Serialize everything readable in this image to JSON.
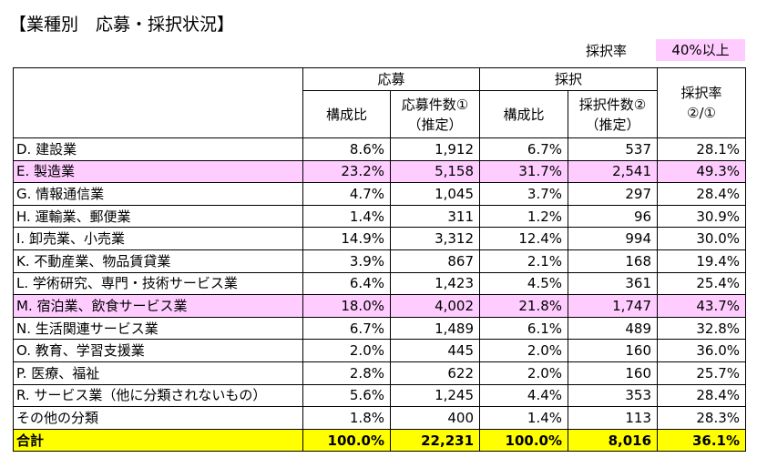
{
  "title": "【業種別　応募・採択状況】",
  "legend": {
    "label": "採択率",
    "value": "40%以上",
    "color": "#ffccff"
  },
  "table": {
    "header": {
      "applications": "応募",
      "adoptions": "採択",
      "rate": "採択率\n②/①",
      "app_share": "構成比",
      "app_count": "応募件数①\n（推定）",
      "adp_share": "構成比",
      "adp_count": "採択件数②\n（推定）"
    },
    "rows": [
      [
        "D. 建設業",
        "8.6%",
        "1,912",
        "6.7%",
        "537",
        "28.1%"
      ],
      [
        "E. 製造業",
        "23.2%",
        "5,158",
        "31.7%",
        "2,541",
        "49.3%"
      ],
      [
        "G. 情報通信業",
        "4.7%",
        "1,045",
        "3.7%",
        "297",
        "28.4%"
      ],
      [
        "H. 運輸業、郵便業",
        "1.4%",
        "311",
        "1.2%",
        "96",
        "30.9%"
      ],
      [
        "I. 卸売業、小売業",
        "14.9%",
        "3,312",
        "12.4%",
        "994",
        "30.0%"
      ],
      [
        "K. 不動産業、物品賃貸業",
        "3.9%",
        "867",
        "2.1%",
        "168",
        "19.4%"
      ],
      [
        "L. 学術研究、専門・技術サービス業",
        "6.4%",
        "1,423",
        "4.5%",
        "361",
        "25.4%"
      ],
      [
        "M. 宿泊業、飲食サービス業",
        "18.0%",
        "4,002",
        "21.8%",
        "1,747",
        "43.7%"
      ],
      [
        "N. 生活関連サービス業",
        "6.7%",
        "1,489",
        "6.1%",
        "489",
        "32.8%"
      ],
      [
        "O. 教育、学習支援業",
        "2.0%",
        "445",
        "2.0%",
        "160",
        "36.0%"
      ],
      [
        "P. 医療、福祉",
        "2.8%",
        "622",
        "2.0%",
        "160",
        "25.7%"
      ],
      [
        "R. サービス業（他に分類されないもの）",
        "5.6%",
        "1,245",
        "4.4%",
        "353",
        "28.4%"
      ],
      [
        "その他の分類",
        "1.8%",
        "400",
        "1.4%",
        "113",
        "28.3%"
      ]
    ],
    "highlight_rows": [
      1,
      7
    ],
    "total": [
      "合計",
      "100.0%",
      "22,231",
      "100.0%",
      "8,016",
      "36.1%"
    ],
    "total_color": "#ffff00"
  }
}
